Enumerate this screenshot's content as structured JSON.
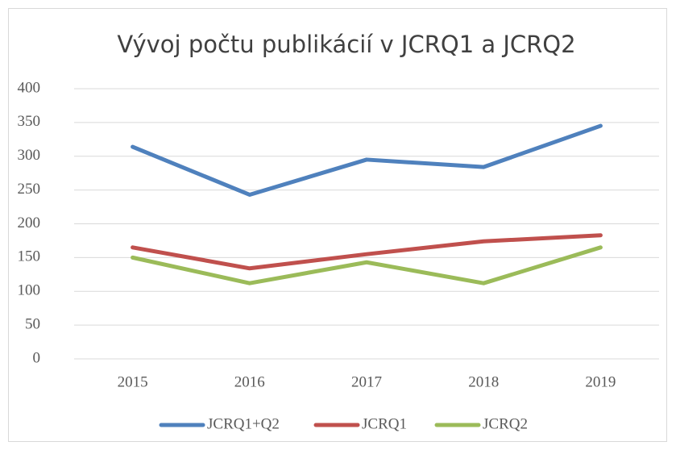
{
  "chart_data": {
    "type": "line",
    "title": "Vývoj počtu publikácií v JCRQ1 a JCRQ2",
    "categories": [
      "2015",
      "2016",
      "2017",
      "2018",
      "2019"
    ],
    "series": [
      {
        "name": "JCRQ1+Q2",
        "color": "#4f81bd",
        "values": [
          314,
          243,
          295,
          284,
          345
        ]
      },
      {
        "name": "JCRQ1",
        "color": "#c0504d",
        "values": [
          165,
          134,
          155,
          174,
          183
        ]
      },
      {
        "name": "JCRQ2",
        "color": "#9bbb59",
        "values": [
          150,
          112,
          143,
          112,
          165
        ]
      }
    ],
    "ylim": [
      0,
      400
    ],
    "yticks": [
      0,
      50,
      100,
      150,
      200,
      250,
      300,
      350,
      400
    ],
    "grid": true,
    "legend": "bottom"
  }
}
